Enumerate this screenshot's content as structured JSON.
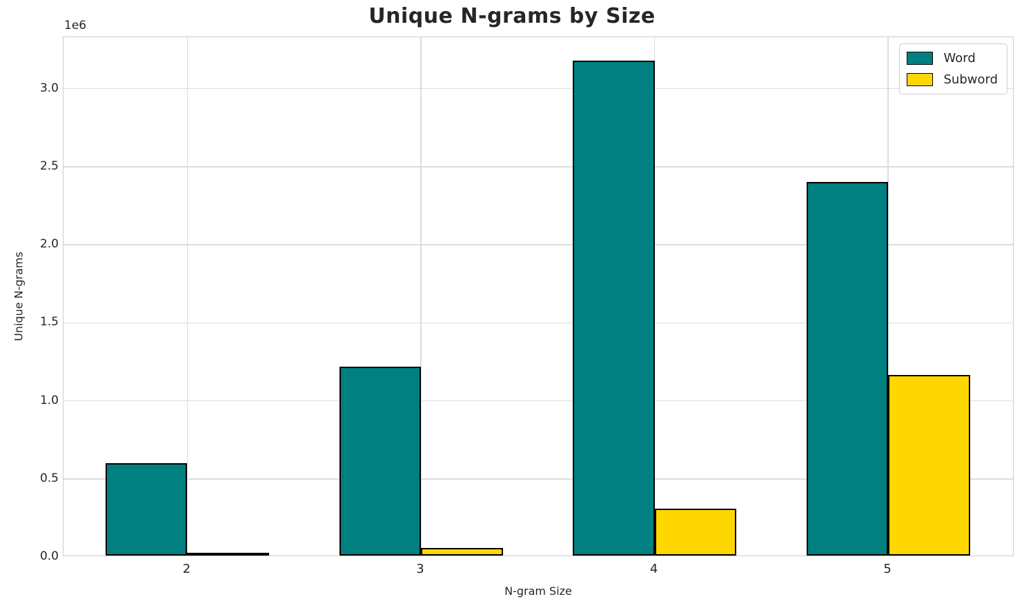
{
  "chart_data": {
    "type": "bar",
    "title": "Unique N-grams by Size",
    "xlabel": "N-gram Size",
    "ylabel": "Unique N-grams",
    "y_offset_label": "1e6",
    "categories": [
      "2",
      "3",
      "4",
      "5"
    ],
    "series": [
      {
        "name": "Word",
        "color": "#008080",
        "values": [
          590000,
          1210000,
          3170000,
          2395000
        ]
      },
      {
        "name": "Subword",
        "color": "#FFD700",
        "values": [
          5000,
          48000,
          300000,
          1155000
        ]
      }
    ],
    "bar_edge_color": "#000000",
    "bar_width": 0.35,
    "xlim": [
      -0.53,
      3.54
    ],
    "ylim": [
      0,
      3330000
    ],
    "yticks": [
      0,
      500000,
      1000000,
      1500000,
      2000000,
      2500000,
      3000000
    ],
    "ytick_labels": [
      "0.0",
      "0.5",
      "1.0",
      "1.5",
      "2.0",
      "2.5",
      "3.0"
    ],
    "grid": true,
    "legend_position": "upper right"
  },
  "style": {
    "text_color": "#262626",
    "grid_color": "#dcdcdc",
    "border_color": "#cccccc",
    "background": "#ffffff"
  }
}
